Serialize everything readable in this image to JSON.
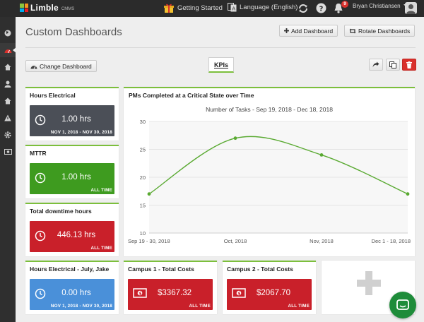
{
  "topbar": {
    "logo_text": "Limble",
    "logo_sub": "CMMS",
    "getting_started": "Getting Started",
    "language": "Language (English)",
    "notification_count": "9",
    "user_name": "Bryan Christiansen"
  },
  "page": {
    "title": "Custom Dashboards",
    "add_dashboard": "Add Dashboard",
    "rotate_dashboards": "Rotate Dashboards",
    "change_dashboard": "Change Dashboard",
    "active_tab": "KPIs"
  },
  "widgets": {
    "hours_electrical": {
      "title": "Hours Electrical",
      "value": "1.00 hrs",
      "range": "NOV 1, 2018 - NOV 30, 2018",
      "color": "#4b4f57"
    },
    "mttr": {
      "title": "MTTR",
      "value": "1.00 hrs",
      "range": "ALL TIME",
      "color": "#3e9b1f"
    },
    "downtime": {
      "title": "Total downtime hours",
      "value": "446.13 hrs",
      "range": "ALL TIME",
      "color": "#c9202a"
    },
    "hours_electrical_july": {
      "title": "Hours Electrical - July, Jake",
      "value": "0.00 hrs",
      "range": "NOV 1, 2018 - NOV 30, 2018",
      "color": "#4a90d9"
    },
    "campus1": {
      "title": "Campus 1 - Total Costs",
      "value": "$3367.32",
      "range": "ALL TIME",
      "color": "#c9202a"
    },
    "campus2": {
      "title": "Campus 2 - Total Costs",
      "value": "$2067.70",
      "range": "ALL TIME",
      "color": "#c9202a"
    }
  },
  "chart": {
    "title": "PMs Completed at a Critical State over Time",
    "subtitle": "Number of Tasks - Sep 19, 2018 - Dec 18, 2018"
  },
  "chart_data": {
    "type": "line",
    "categories": [
      "Sep 19 - 30, 2018",
      "Oct, 2018",
      "Nov, 2018",
      "Dec 1 - 18, 2018"
    ],
    "values": [
      17,
      27,
      24,
      17
    ],
    "ylim": [
      10,
      30
    ],
    "yticks": [
      10,
      15,
      20,
      25,
      30
    ],
    "line_color": "#5aaa32",
    "grid": true
  }
}
